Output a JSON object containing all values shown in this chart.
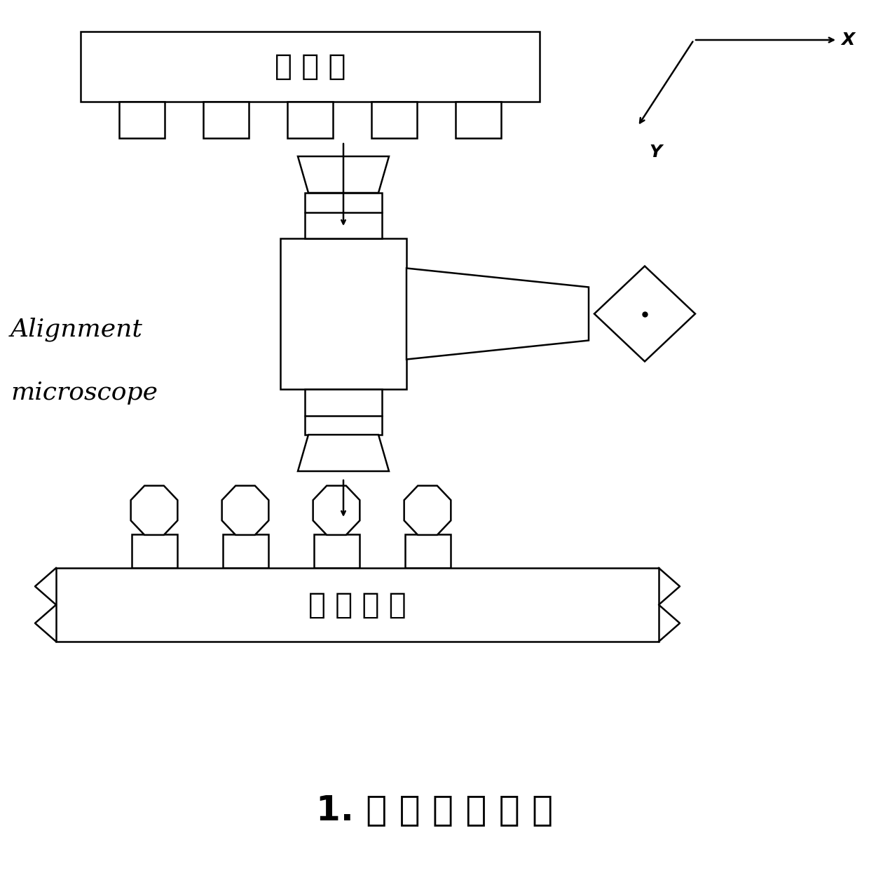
{
  "bg_color": "#ffffff",
  "line_color": "#000000",
  "title_text": "1. 倒 装 焊 机 压 焊",
  "detector_label": "探 测 器",
  "readout_label": "读 出 电 路",
  "align_line1": "Alignment",
  "align_line2": "microscope",
  "axis_x_label": "X",
  "axis_y_label": "Y",
  "lw": 1.8
}
